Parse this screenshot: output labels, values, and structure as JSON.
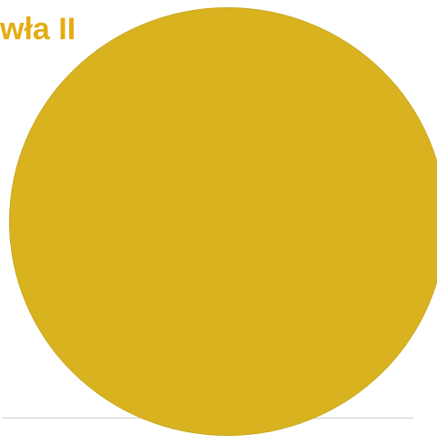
{
  "heading": {
    "text": "wła II"
  },
  "colors": {
    "heading": "#e3ad15",
    "circle_fill": "#d9b31f",
    "divider": "#cfcfcf"
  }
}
